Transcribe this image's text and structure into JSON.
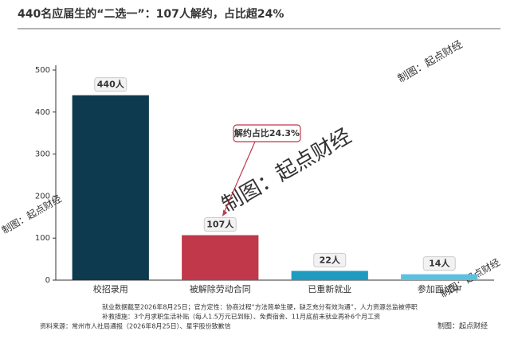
{
  "chart_data": {
    "type": "bar",
    "title": "440名应届生的“二选一”：107人解约，占比超24%",
    "categories": [
      "校招录用",
      "被解除劳动合同",
      "已重新就业",
      "参加面试中"
    ],
    "values": [
      440,
      107,
      22,
      14
    ],
    "value_labels": [
      "440人",
      "107人",
      "22人",
      "14人"
    ],
    "colors": [
      "#0d3a4f",
      "#c0384a",
      "#1f9bbf",
      "#5cc0de"
    ],
    "ylim": [
      0,
      500
    ],
    "yticks": [
      0,
      100,
      200,
      300,
      400,
      500
    ],
    "annotation": "解约占比24.3%",
    "notes": [
      "就业数据截至2026年8月25日；官方定性：协商过程“方法简单生硬，缺乏充分有效沟通”，人力资源总监被停职",
      "补救措施：3个月求职生活补贴（每人1.5万元已到账）、免费宿舍、11月底前未就业再补6个月工资"
    ],
    "source": "资料来源：常州市人社局通报（2026年8月25日）、星宇股份致歉信",
    "credit": "制图：起点财经",
    "watermark": "制图：起点财经"
  }
}
